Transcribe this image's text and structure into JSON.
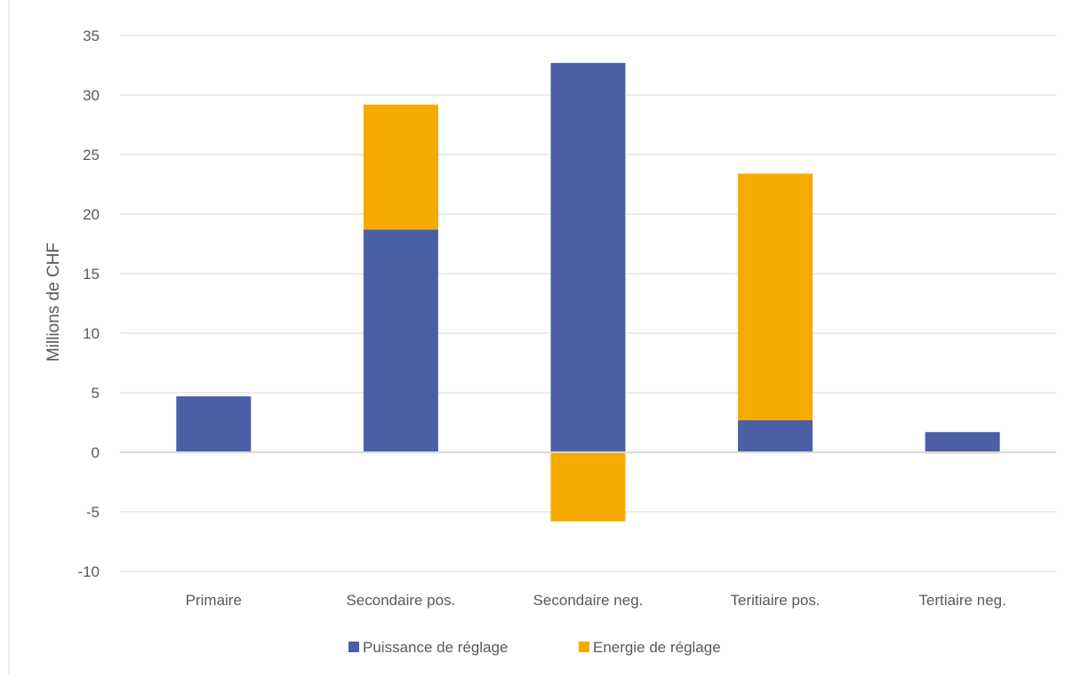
{
  "chart_data": {
    "type": "bar",
    "stacked": true,
    "title": "",
    "xlabel": "",
    "ylabel": "Millions de CHF",
    "ylim": [
      -10,
      35
    ],
    "yticks": [
      -10,
      -5,
      0,
      5,
      10,
      15,
      20,
      25,
      30,
      35
    ],
    "grid": true,
    "legend_position": "bottom",
    "categories": [
      "Primaire",
      "Secondaire pos.",
      "Secondaire neg.",
      "Teritiaire pos.",
      "Tertiaire neg."
    ],
    "series": [
      {
        "name": "Puissance de réglage",
        "color": "#4a5fa6",
        "values": [
          4.7,
          18.7,
          32.7,
          2.7,
          1.7
        ]
      },
      {
        "name": "Energie de réglage",
        "color": "#f5aa00",
        "values": [
          0.0,
          10.5,
          -5.8,
          20.7,
          -0.1
        ]
      }
    ]
  }
}
